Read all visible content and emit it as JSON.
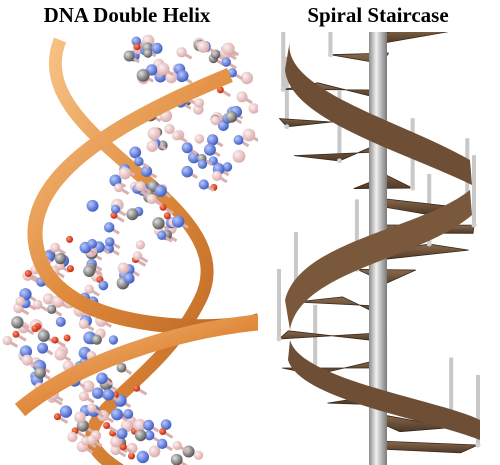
{
  "panels": [
    {
      "title": "DNA Double Helix"
    },
    {
      "title": "Spiral Staircase"
    }
  ]
}
